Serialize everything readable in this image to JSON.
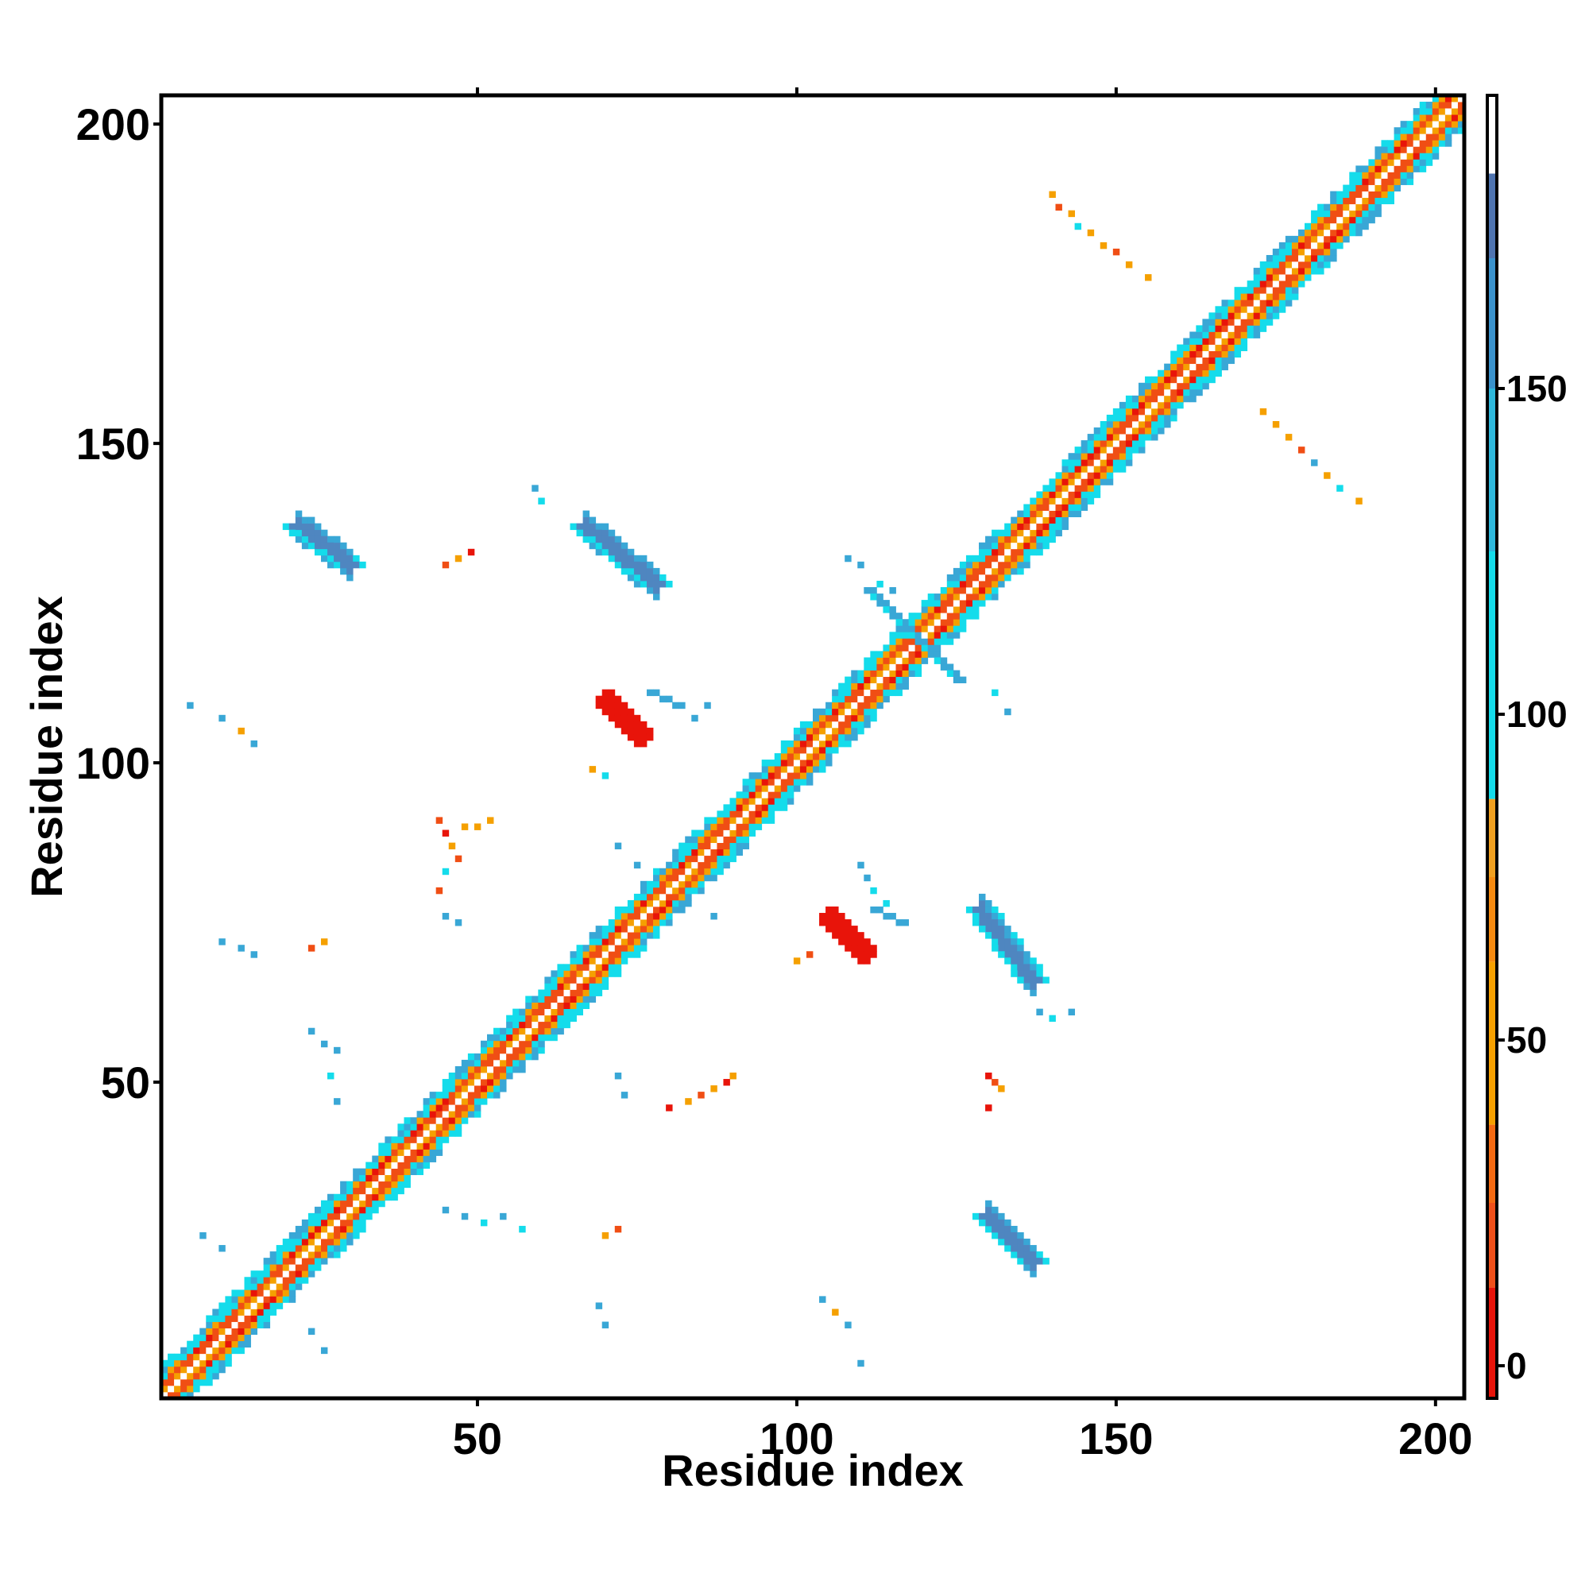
{
  "chart_data": {
    "type": "heatmap",
    "title": "",
    "xlabel": "Residue index",
    "ylabel": "Residue index",
    "xlim": [
      1,
      204
    ],
    "ylim": [
      1,
      204
    ],
    "x_ticks": [
      50,
      100,
      150,
      200
    ],
    "y_ticks": [
      50,
      100,
      150,
      200
    ],
    "x_tick_labels": [
      "50",
      "100",
      "150",
      "200"
    ],
    "y_tick_labels": [
      "50",
      "100",
      "150",
      "200"
    ],
    "grid": false,
    "colorbar": {
      "position": "right",
      "range": [
        -5,
        195
      ],
      "ticks": [
        0,
        50,
        100,
        150
      ],
      "tick_labels": [
        "0",
        "50",
        "100",
        "150"
      ],
      "bands": [
        {
          "from": -5,
          "to": 12,
          "color": "#e8140a"
        },
        {
          "from": 12,
          "to": 25,
          "color": "#f0501a"
        },
        {
          "from": 25,
          "to": 37,
          "color": "#f46a12"
        },
        {
          "from": 37,
          "to": 62,
          "color": "#f5a000"
        },
        {
          "from": 62,
          "to": 75,
          "color": "#f58a10"
        },
        {
          "from": 75,
          "to": 87,
          "color": "#f0a020"
        },
        {
          "from": 87,
          "to": 125,
          "color": "#14dceb"
        },
        {
          "from": 125,
          "to": 150,
          "color": "#2eb8dc"
        },
        {
          "from": 150,
          "to": 170,
          "color": "#3a92cc"
        },
        {
          "from": 170,
          "to": 183,
          "color": "#4f74b0"
        },
        {
          "from": 183,
          "to": 195,
          "color": "#ffffff"
        }
      ]
    },
    "value_to_color_classes": {
      "red": "#e8140a",
      "dark_orange": "#f04e14",
      "orange": "#f5a000",
      "cyan": "#14dceb",
      "light_blue": "#39a7d6",
      "steel_blue": "#4f86c0"
    },
    "diagonal": {
      "from": 1,
      "to": 204
    },
    "regions": [
      {
        "name": "diag-band",
        "kind": "band",
        "from": [
          1,
          1
        ],
        "to": [
          204,
          204
        ],
        "color_class": "mixed"
      },
      {
        "name": "helix-b1",
        "kind": "antidiag",
        "from": [
          22,
          137
        ],
        "to": [
          30,
          131
        ],
        "color_class": "steel_blue"
      },
      {
        "name": "helix-b2",
        "kind": "antidiag",
        "from": [
          67,
          137
        ],
        "to": [
          78,
          128
        ],
        "color_class": "steel_blue"
      },
      {
        "name": "helix-b3",
        "kind": "antidiag",
        "from": [
          129,
          77
        ],
        "to": [
          137,
          66
        ],
        "color_class": "steel_blue"
      },
      {
        "name": "helix-b4",
        "kind": "antidiag",
        "from": [
          130,
          29
        ],
        "to": [
          137,
          22
        ],
        "color_class": "steel_blue"
      },
      {
        "name": "red-blob-1",
        "kind": "blob",
        "center": [
          73,
          107
        ],
        "color_class": "red"
      },
      {
        "name": "red-blob-2",
        "kind": "blob",
        "center": [
          108,
          73
        ],
        "color_class": "red"
      },
      {
        "name": "cross-1",
        "kind": "cross",
        "center": [
          118,
          120
        ],
        "color_class": "light_blue"
      },
      {
        "name": "scatter-1",
        "kind": "antidiag",
        "from": [
          140,
          189
        ],
        "to": [
          155,
          176
        ],
        "color_class": "orange"
      },
      {
        "name": "scatter-2",
        "kind": "antidiag",
        "from": [
          173,
          155
        ],
        "to": [
          188,
          141
        ],
        "color_class": "orange"
      }
    ]
  }
}
